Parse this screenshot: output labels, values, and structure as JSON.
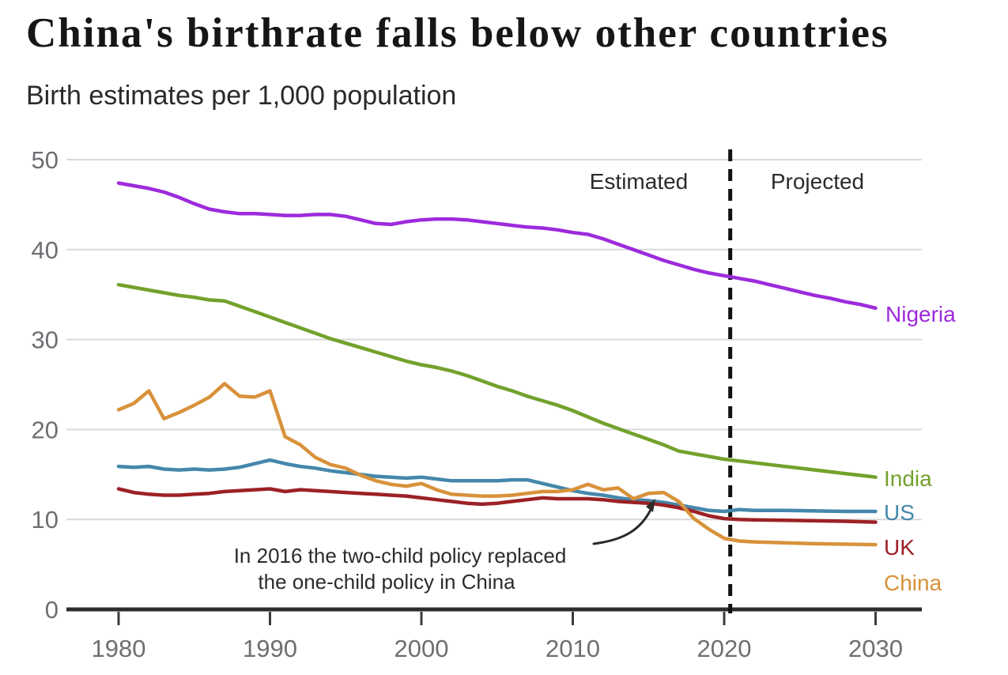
{
  "chart_data": {
    "type": "line",
    "title": "China's birthrate falls below other countries",
    "subtitle": "Birth estimates per 1,000 population",
    "xlabel": "",
    "ylabel": "",
    "x_ticks": [
      "1980",
      "1990",
      "2000",
      "2010",
      "2020",
      "2030"
    ],
    "y_ticks": [
      0,
      10,
      20,
      30,
      40,
      50
    ],
    "xlim": [
      1980,
      2030
    ],
    "ylim": [
      0,
      50
    ],
    "grid": "horizontal",
    "divider": {
      "year": 2020.4,
      "style": "dashed",
      "label_left": "Estimated",
      "label_right": "Projected"
    },
    "annotation": {
      "line1": "In 2016 the two-child policy replaced",
      "line2": "the one-child policy in China",
      "arrow_target_year": 2016,
      "arrow_target_value": 13
    },
    "series": [
      {
        "name": "Nigeria",
        "color": "#9d2bdd",
        "points": [
          [
            1980,
            47.4
          ],
          [
            1981,
            47.1
          ],
          [
            1982,
            46.8
          ],
          [
            1983,
            46.4
          ],
          [
            1984,
            45.8
          ],
          [
            1985,
            45.1
          ],
          [
            1986,
            44.5
          ],
          [
            1987,
            44.2
          ],
          [
            1988,
            44.0
          ],
          [
            1989,
            44.0
          ],
          [
            1990,
            43.9
          ],
          [
            1991,
            43.8
          ],
          [
            1992,
            43.8
          ],
          [
            1993,
            43.9
          ],
          [
            1994,
            43.9
          ],
          [
            1995,
            43.7
          ],
          [
            1996,
            43.3
          ],
          [
            1997,
            42.9
          ],
          [
            1998,
            42.8
          ],
          [
            1999,
            43.1
          ],
          [
            2000,
            43.3
          ],
          [
            2001,
            43.4
          ],
          [
            2002,
            43.4
          ],
          [
            2003,
            43.3
          ],
          [
            2004,
            43.1
          ],
          [
            2005,
            42.9
          ],
          [
            2006,
            42.7
          ],
          [
            2007,
            42.5
          ],
          [
            2008,
            42.4
          ],
          [
            2009,
            42.2
          ],
          [
            2010,
            41.9
          ],
          [
            2011,
            41.7
          ],
          [
            2012,
            41.2
          ],
          [
            2013,
            40.6
          ],
          [
            2014,
            40.0
          ],
          [
            2015,
            39.4
          ],
          [
            2016,
            38.8
          ],
          [
            2017,
            38.3
          ],
          [
            2018,
            37.8
          ],
          [
            2019,
            37.4
          ],
          [
            2020,
            37.1
          ],
          [
            2021,
            36.8
          ],
          [
            2022,
            36.5
          ],
          [
            2023,
            36.1
          ],
          [
            2024,
            35.7
          ],
          [
            2025,
            35.3
          ],
          [
            2026,
            34.9
          ],
          [
            2027,
            34.6
          ],
          [
            2028,
            34.2
          ],
          [
            2029,
            33.9
          ],
          [
            2030,
            33.5
          ]
        ]
      },
      {
        "name": "India",
        "color": "#73a12c",
        "points": [
          [
            1980,
            36.1
          ],
          [
            1981,
            35.8
          ],
          [
            1982,
            35.5
          ],
          [
            1983,
            35.2
          ],
          [
            1984,
            34.9
          ],
          [
            1985,
            34.7
          ],
          [
            1986,
            34.4
          ],
          [
            1987,
            34.3
          ],
          [
            1988,
            33.7
          ],
          [
            1989,
            33.1
          ],
          [
            1990,
            32.5
          ],
          [
            1991,
            31.9
          ],
          [
            1992,
            31.3
          ],
          [
            1993,
            30.7
          ],
          [
            1994,
            30.1
          ],
          [
            1995,
            29.6
          ],
          [
            1996,
            29.1
          ],
          [
            1997,
            28.6
          ],
          [
            1998,
            28.1
          ],
          [
            1999,
            27.6
          ],
          [
            2000,
            27.2
          ],
          [
            2001,
            26.9
          ],
          [
            2002,
            26.5
          ],
          [
            2003,
            26.0
          ],
          [
            2004,
            25.4
          ],
          [
            2005,
            24.8
          ],
          [
            2006,
            24.3
          ],
          [
            2007,
            23.7
          ],
          [
            2008,
            23.2
          ],
          [
            2009,
            22.7
          ],
          [
            2010,
            22.1
          ],
          [
            2011,
            21.4
          ],
          [
            2012,
            20.7
          ],
          [
            2013,
            20.1
          ],
          [
            2014,
            19.5
          ],
          [
            2015,
            18.9
          ],
          [
            2016,
            18.3
          ],
          [
            2017,
            17.6
          ],
          [
            2018,
            17.3
          ],
          [
            2019,
            17.0
          ],
          [
            2020,
            16.7
          ],
          [
            2021,
            16.5
          ],
          [
            2022,
            16.3
          ],
          [
            2023,
            16.1
          ],
          [
            2024,
            15.9
          ],
          [
            2025,
            15.7
          ],
          [
            2026,
            15.5
          ],
          [
            2027,
            15.3
          ],
          [
            2028,
            15.1
          ],
          [
            2029,
            14.9
          ],
          [
            2030,
            14.7
          ]
        ]
      },
      {
        "name": "US",
        "color": "#4587ab",
        "points": [
          [
            1980,
            15.9
          ],
          [
            1981,
            15.8
          ],
          [
            1982,
            15.9
          ],
          [
            1983,
            15.6
          ],
          [
            1984,
            15.5
          ],
          [
            1985,
            15.6
          ],
          [
            1986,
            15.5
          ],
          [
            1987,
            15.6
          ],
          [
            1988,
            15.8
          ],
          [
            1989,
            16.2
          ],
          [
            1990,
            16.6
          ],
          [
            1991,
            16.2
          ],
          [
            1992,
            15.9
          ],
          [
            1993,
            15.7
          ],
          [
            1994,
            15.4
          ],
          [
            1995,
            15.2
          ],
          [
            1996,
            15.0
          ],
          [
            1997,
            14.8
          ],
          [
            1998,
            14.7
          ],
          [
            1999,
            14.6
          ],
          [
            2000,
            14.7
          ],
          [
            2001,
            14.5
          ],
          [
            2002,
            14.3
          ],
          [
            2003,
            14.3
          ],
          [
            2004,
            14.3
          ],
          [
            2005,
            14.3
          ],
          [
            2006,
            14.4
          ],
          [
            2007,
            14.4
          ],
          [
            2008,
            14.0
          ],
          [
            2009,
            13.6
          ],
          [
            2010,
            13.2
          ],
          [
            2011,
            12.9
          ],
          [
            2012,
            12.7
          ],
          [
            2013,
            12.4
          ],
          [
            2014,
            12.2
          ],
          [
            2015,
            12.1
          ],
          [
            2016,
            11.9
          ],
          [
            2017,
            11.6
          ],
          [
            2018,
            11.3
          ],
          [
            2019,
            11.0
          ],
          [
            2020,
            10.9
          ],
          [
            2021,
            11.1
          ],
          [
            2022,
            11.0
          ],
          [
            2024,
            11.0
          ],
          [
            2026,
            10.95
          ],
          [
            2028,
            10.9
          ],
          [
            2030,
            10.9
          ]
        ]
      },
      {
        "name": "UK",
        "color": "#9c2125",
        "points": [
          [
            1980,
            13.4
          ],
          [
            1981,
            13.0
          ],
          [
            1982,
            12.8
          ],
          [
            1983,
            12.7
          ],
          [
            1984,
            12.7
          ],
          [
            1985,
            12.8
          ],
          [
            1986,
            12.9
          ],
          [
            1987,
            13.1
          ],
          [
            1988,
            13.2
          ],
          [
            1989,
            13.3
          ],
          [
            1990,
            13.4
          ],
          [
            1991,
            13.1
          ],
          [
            1992,
            13.3
          ],
          [
            1993,
            13.2
          ],
          [
            1994,
            13.1
          ],
          [
            1995,
            13.0
          ],
          [
            1996,
            12.9
          ],
          [
            1997,
            12.8
          ],
          [
            1998,
            12.7
          ],
          [
            1999,
            12.6
          ],
          [
            2000,
            12.4
          ],
          [
            2001,
            12.2
          ],
          [
            2002,
            12.0
          ],
          [
            2003,
            11.8
          ],
          [
            2004,
            11.7
          ],
          [
            2005,
            11.8
          ],
          [
            2006,
            12.0
          ],
          [
            2007,
            12.2
          ],
          [
            2008,
            12.4
          ],
          [
            2009,
            12.3
          ],
          [
            2010,
            12.3
          ],
          [
            2011,
            12.3
          ],
          [
            2012,
            12.2
          ],
          [
            2013,
            12.0
          ],
          [
            2014,
            11.9
          ],
          [
            2015,
            11.8
          ],
          [
            2016,
            11.6
          ],
          [
            2017,
            11.3
          ],
          [
            2018,
            10.9
          ],
          [
            2019,
            10.4
          ],
          [
            2020,
            10.1
          ],
          [
            2021,
            10.0
          ],
          [
            2022,
            9.95
          ],
          [
            2024,
            9.9
          ],
          [
            2026,
            9.85
          ],
          [
            2028,
            9.8
          ],
          [
            2030,
            9.7
          ]
        ]
      },
      {
        "name": "China",
        "color": "#d8923b",
        "points": [
          [
            1980,
            22.2
          ],
          [
            1981,
            22.9
          ],
          [
            1982,
            24.3
          ],
          [
            1983,
            21.2
          ],
          [
            1984,
            21.9
          ],
          [
            1985,
            22.7
          ],
          [
            1986,
            23.6
          ],
          [
            1987,
            25.1
          ],
          [
            1988,
            23.7
          ],
          [
            1989,
            23.6
          ],
          [
            1990,
            24.3
          ],
          [
            1991,
            19.2
          ],
          [
            1992,
            18.3
          ],
          [
            1993,
            16.9
          ],
          [
            1994,
            16.1
          ],
          [
            1995,
            15.7
          ],
          [
            1996,
            14.9
          ],
          [
            1997,
            14.3
          ],
          [
            1998,
            13.9
          ],
          [
            1999,
            13.7
          ],
          [
            2000,
            14.0
          ],
          [
            2001,
            13.3
          ],
          [
            2002,
            12.8
          ],
          [
            2003,
            12.7
          ],
          [
            2004,
            12.6
          ],
          [
            2005,
            12.6
          ],
          [
            2006,
            12.7
          ],
          [
            2007,
            12.9
          ],
          [
            2008,
            13.1
          ],
          [
            2009,
            13.1
          ],
          [
            2010,
            13.3
          ],
          [
            2011,
            13.9
          ],
          [
            2012,
            13.3
          ],
          [
            2013,
            13.5
          ],
          [
            2014,
            12.3
          ],
          [
            2015,
            12.9
          ],
          [
            2016,
            13.0
          ],
          [
            2017,
            12.0
          ],
          [
            2018,
            10.1
          ],
          [
            2019,
            8.9
          ],
          [
            2020,
            7.9
          ],
          [
            2021,
            7.6
          ],
          [
            2022,
            7.5
          ],
          [
            2024,
            7.4
          ],
          [
            2026,
            7.3
          ],
          [
            2028,
            7.25
          ],
          [
            2030,
            7.2
          ]
        ]
      }
    ]
  },
  "colors": {
    "grid": "#d9d9d9",
    "axis": "#2d2d2d",
    "tick": "#3c3c3c",
    "tick_label": "#6e6e73",
    "divider": "#111111",
    "annotation": "#2b2b2b"
  }
}
